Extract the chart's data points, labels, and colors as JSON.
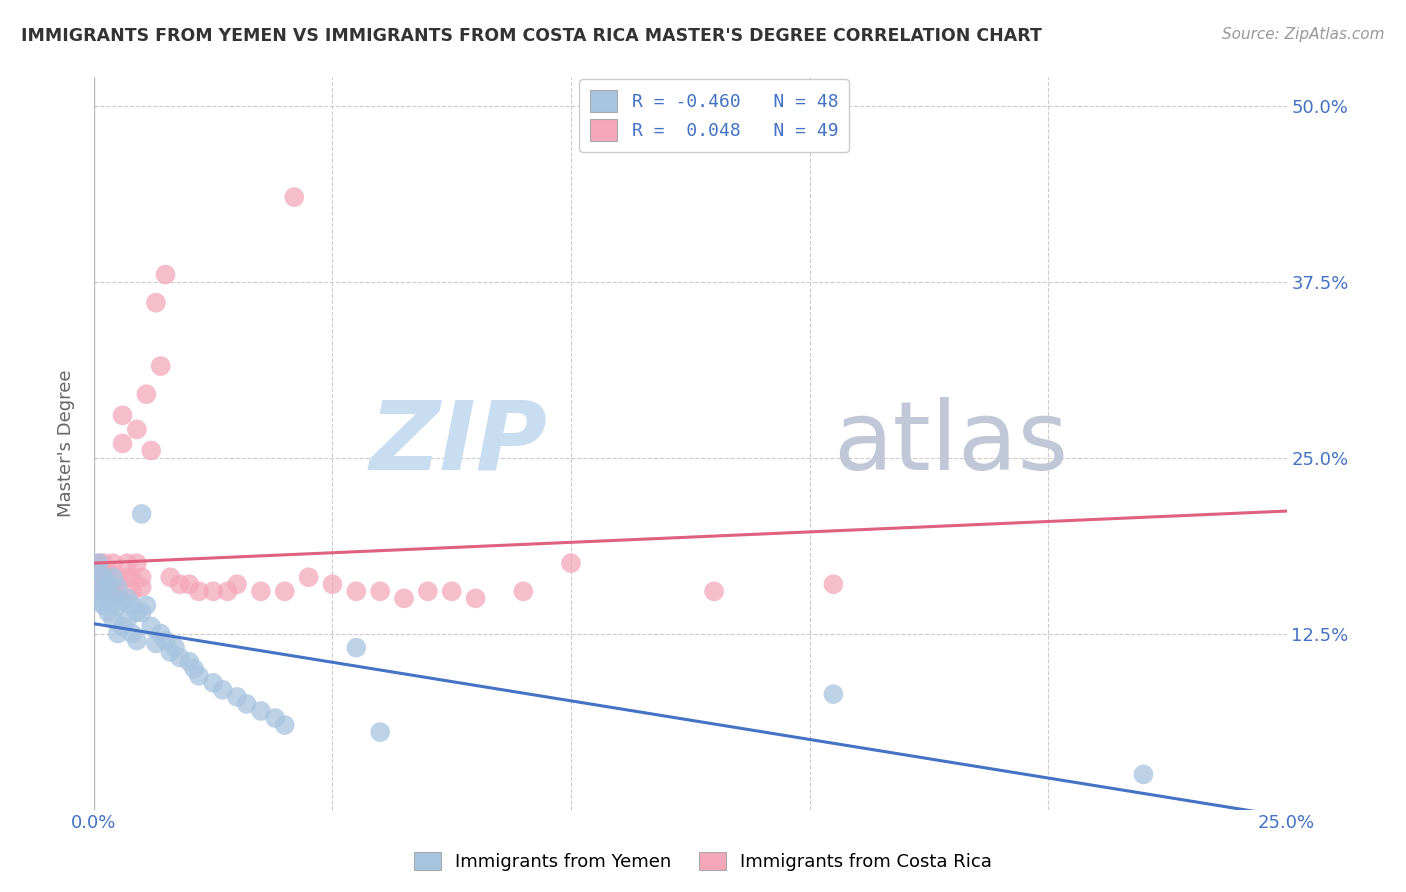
{
  "title": "IMMIGRANTS FROM YEMEN VS IMMIGRANTS FROM COSTA RICA MASTER'S DEGREE CORRELATION CHART",
  "source": "Source: ZipAtlas.com",
  "ylabel": "Master's Degree",
  "color_yemen": "#a8c4e0",
  "color_costarica": "#f4a7b9",
  "color_trendline_yemen": "#4472c4",
  "color_trendline_costarica": "#e06080",
  "color_axis_labels": "#4472c4",
  "color_grid": "#cccccc",
  "watermark_zip": "ZIP",
  "watermark_atlas": "atlas",
  "watermark_color_zip": "#c8ddf0",
  "watermark_color_atlas": "#c0c8d8",
  "background_color": "#ffffff",
  "xlim": [
    0.0,
    0.25
  ],
  "ylim": [
    0.0,
    0.52
  ],
  "yticks": [
    0.125,
    0.25,
    0.375,
    0.5
  ],
  "ytick_labels": [
    "12.5%",
    "25.0%",
    "37.5%",
    "50.0%"
  ],
  "xticks": [
    0.0,
    0.05,
    0.1,
    0.15,
    0.2,
    0.25
  ],
  "xtick_labels": [
    "0.0%",
    "",
    "",
    "",
    "",
    "25.0%"
  ],
  "legend_line1": "R = -0.460   N = 48",
  "legend_line2": "R =  0.048   N = 49",
  "bottom_legend1": "Immigrants from Yemen",
  "bottom_legend2": "Immigrants from Costa Rica",
  "yemen_trend_x0": 0.0,
  "yemen_trend_y0": 0.132,
  "yemen_trend_x1": 0.25,
  "yemen_trend_y1": -0.005,
  "cr_trend_x0": 0.0,
  "cr_trend_y0": 0.175,
  "cr_trend_x1": 0.25,
  "cr_trend_y1": 0.212,
  "yemen_points_x": [
    0.001,
    0.001,
    0.001,
    0.001,
    0.002,
    0.002,
    0.002,
    0.003,
    0.003,
    0.003,
    0.004,
    0.004,
    0.004,
    0.005,
    0.005,
    0.005,
    0.006,
    0.006,
    0.007,
    0.007,
    0.008,
    0.008,
    0.009,
    0.009,
    0.01,
    0.01,
    0.011,
    0.012,
    0.013,
    0.014,
    0.015,
    0.016,
    0.017,
    0.018,
    0.02,
    0.021,
    0.022,
    0.025,
    0.027,
    0.03,
    0.032,
    0.035,
    0.038,
    0.04,
    0.055,
    0.06,
    0.155,
    0.22
  ],
  "yemen_points_y": [
    0.175,
    0.168,
    0.155,
    0.148,
    0.165,
    0.155,
    0.145,
    0.16,
    0.148,
    0.14,
    0.165,
    0.15,
    0.135,
    0.158,
    0.145,
    0.125,
    0.148,
    0.13,
    0.15,
    0.135,
    0.145,
    0.125,
    0.14,
    0.12,
    0.14,
    0.21,
    0.145,
    0.13,
    0.118,
    0.125,
    0.12,
    0.112,
    0.115,
    0.108,
    0.105,
    0.1,
    0.095,
    0.09,
    0.085,
    0.08,
    0.075,
    0.07,
    0.065,
    0.06,
    0.115,
    0.055,
    0.082,
    0.025
  ],
  "cr_points_x": [
    0.001,
    0.001,
    0.001,
    0.002,
    0.002,
    0.002,
    0.003,
    0.003,
    0.004,
    0.004,
    0.005,
    0.005,
    0.006,
    0.006,
    0.007,
    0.007,
    0.008,
    0.008,
    0.009,
    0.009,
    0.01,
    0.01,
    0.011,
    0.012,
    0.013,
    0.014,
    0.015,
    0.016,
    0.018,
    0.02,
    0.022,
    0.025,
    0.028,
    0.03,
    0.035,
    0.04,
    0.042,
    0.045,
    0.05,
    0.055,
    0.06,
    0.065,
    0.07,
    0.075,
    0.08,
    0.09,
    0.1,
    0.13,
    0.155
  ],
  "cr_points_y": [
    0.175,
    0.165,
    0.155,
    0.175,
    0.165,
    0.155,
    0.17,
    0.155,
    0.175,
    0.155,
    0.165,
    0.155,
    0.28,
    0.26,
    0.175,
    0.165,
    0.165,
    0.155,
    0.27,
    0.175,
    0.165,
    0.158,
    0.295,
    0.255,
    0.36,
    0.315,
    0.38,
    0.165,
    0.16,
    0.16,
    0.155,
    0.155,
    0.155,
    0.16,
    0.155,
    0.155,
    0.435,
    0.165,
    0.16,
    0.155,
    0.155,
    0.15,
    0.155,
    0.155,
    0.15,
    0.155,
    0.175,
    0.155,
    0.16
  ]
}
